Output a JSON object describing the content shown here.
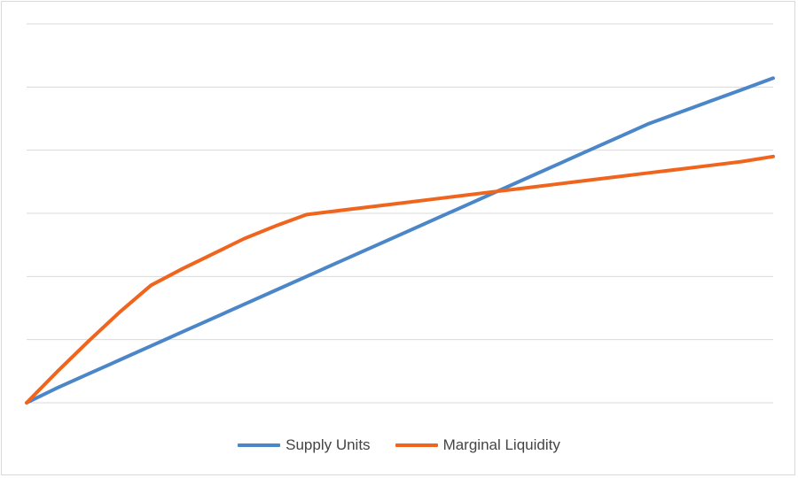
{
  "chart_data": {
    "type": "line",
    "x": [
      0,
      1,
      2,
      3,
      4,
      5,
      6,
      7,
      8,
      9,
      10,
      11,
      12,
      13,
      14,
      15,
      16,
      17,
      18,
      19,
      20,
      21,
      22,
      23,
      24
    ],
    "series": [
      {
        "name": "Supply Units",
        "color": "#4a86c8",
        "values": [
          0.0,
          0.24,
          0.46,
          0.68,
          0.9,
          1.12,
          1.34,
          1.56,
          1.78,
          2.0,
          2.22,
          2.44,
          2.66,
          2.88,
          3.1,
          3.32,
          3.54,
          3.76,
          3.98,
          4.2,
          4.42,
          4.6,
          4.78,
          4.96,
          5.14
        ]
      },
      {
        "name": "Marginal Liquidity",
        "color": "#f0651e",
        "values": [
          0.0,
          0.5,
          0.98,
          1.44,
          1.86,
          2.12,
          2.36,
          2.6,
          2.8,
          2.98,
          3.04,
          3.1,
          3.16,
          3.22,
          3.28,
          3.34,
          3.4,
          3.46,
          3.52,
          3.58,
          3.64,
          3.7,
          3.76,
          3.82,
          3.9
        ]
      }
    ],
    "ylim": [
      0,
      6
    ],
    "grid": true,
    "legend": "bottom"
  }
}
